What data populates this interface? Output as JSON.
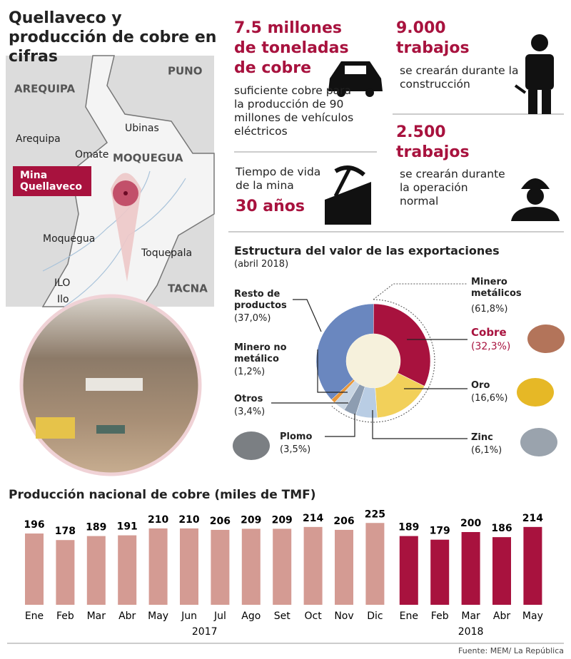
{
  "title": "Quellaveco y producción de cobre en cifras",
  "map": {
    "labels": [
      "PUNO",
      "AREQUIPA",
      "Arequipa",
      "Ubinas",
      "Omate",
      "MOQUEGUA",
      "Moquegua",
      "Toquepala",
      "ILO",
      "Ilo",
      "TACNA"
    ],
    "mine_label": "Mina Quellaveco"
  },
  "facts": [
    {
      "headline": "7.5 millones de toneladas de cobre",
      "text": "suficiente cobre para la producción de 90 millones de vehículos eléctricos"
    },
    {
      "headline": "9.000 trabajos",
      "text": "se crearán durante la construcción"
    },
    {
      "text": "Tiempo de vida de la mina",
      "headline": "30 años"
    },
    {
      "headline": "2.500 trabajos",
      "text": "se crearán durante la operación normal"
    }
  ],
  "chart_data": [
    {
      "type": "donut",
      "title": "Estructura del valor de las exportaciones",
      "subtitle": "(abril 2018)",
      "categories": [
        "Cobre",
        "Oro",
        "Zinc",
        "Plomo",
        "Otros",
        "Minero no metálico",
        "Resto de productos"
      ],
      "values": [
        32.3,
        16.6,
        6.1,
        3.5,
        3.4,
        1.2,
        37.0
      ],
      "value_labels": [
        "(32,3%)",
        "(16,6%)",
        "(6,1%)",
        "(3,5%)",
        "(3,4%)",
        "(1,2%)",
        "(37,0%)"
      ],
      "colors": [
        "#a8123e",
        "#f2d05a",
        "#b9cde4",
        "#8d9db1",
        "#c9d6e3",
        "#e8973a",
        "#6a87bf"
      ],
      "group": {
        "name": "Minero metálicos",
        "value": 61.8,
        "value_label": "(61,8%)"
      }
    },
    {
      "type": "bar",
      "title": "Producción nacional de cobre (miles de TMF)",
      "x": [
        "Ene",
        "Feb",
        "Mar",
        "Abr",
        "May",
        "Jun",
        "Jul",
        "Ago",
        "Set",
        "Oct",
        "Nov",
        "Dic",
        "Ene",
        "Feb",
        "Mar",
        "Abr",
        "May"
      ],
      "series": [
        {
          "name": "2017",
          "color": "#d49b93",
          "values": [
            196,
            178,
            189,
            191,
            210,
            210,
            206,
            209,
            209,
            214,
            206,
            225,
            null,
            null,
            null,
            null,
            null
          ]
        },
        {
          "name": "2018",
          "color": "#a8123e",
          "values": [
            null,
            null,
            null,
            null,
            null,
            null,
            null,
            null,
            null,
            null,
            null,
            null,
            189,
            179,
            200,
            186,
            214
          ]
        }
      ]
    }
  ],
  "source": "Fuente: MEM/ La República"
}
